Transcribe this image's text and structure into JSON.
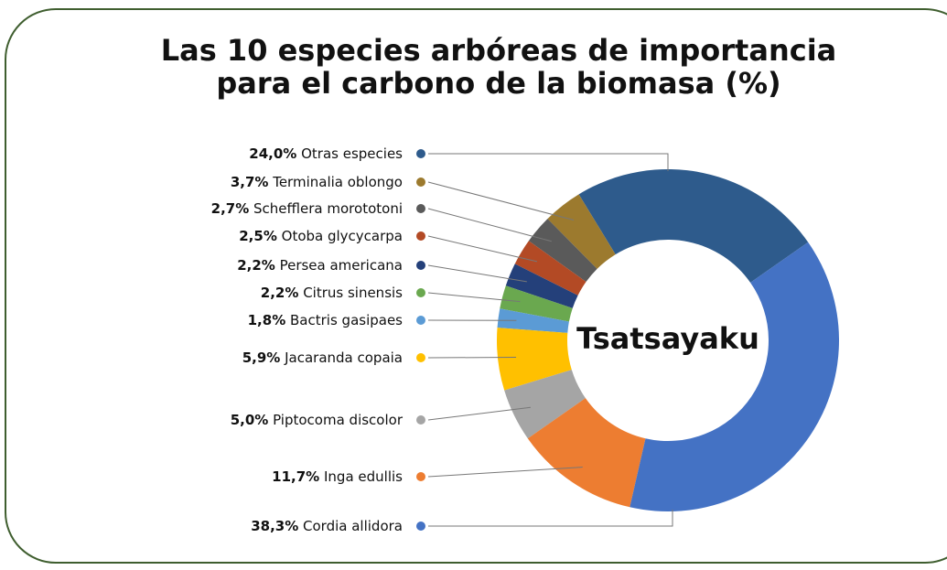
{
  "chart_data": {
    "type": "donut",
    "title": [
      "Las 10 especies arbóreas de importancia",
      "para el carbono de la biomasa (%)"
    ],
    "center_label": "Tsatsayaku",
    "categories": [
      "Otras especies",
      "Terminalia oblongo",
      "Schefflera morototoni",
      "Otoba glycycarpa",
      "Persea americana",
      "Citrus sinensis",
      "Bactris gasipaes",
      "Jacaranda copaia",
      "Piptocoma discolor",
      "Inga edullis",
      "Cordia allidora"
    ],
    "values": [
      24.0,
      3.7,
      2.7,
      2.5,
      2.2,
      2.2,
      1.8,
      5.9,
      5.0,
      11.7,
      38.3
    ],
    "value_labels": [
      "24,0%",
      "3,7%",
      "2,7%",
      "2,5%",
      "2,2%",
      "2,2%",
      "1,8%",
      "5,9%",
      "5,0%",
      "11,7%",
      "38,3%"
    ],
    "colors": [
      "#2e5b8c",
      "#9c7a2e",
      "#5a5a5a",
      "#b34a25",
      "#24407a",
      "#6aa84f",
      "#5b9bd5",
      "#ffc000",
      "#a5a5a5",
      "#ed7d31",
      "#4472c4"
    ]
  }
}
